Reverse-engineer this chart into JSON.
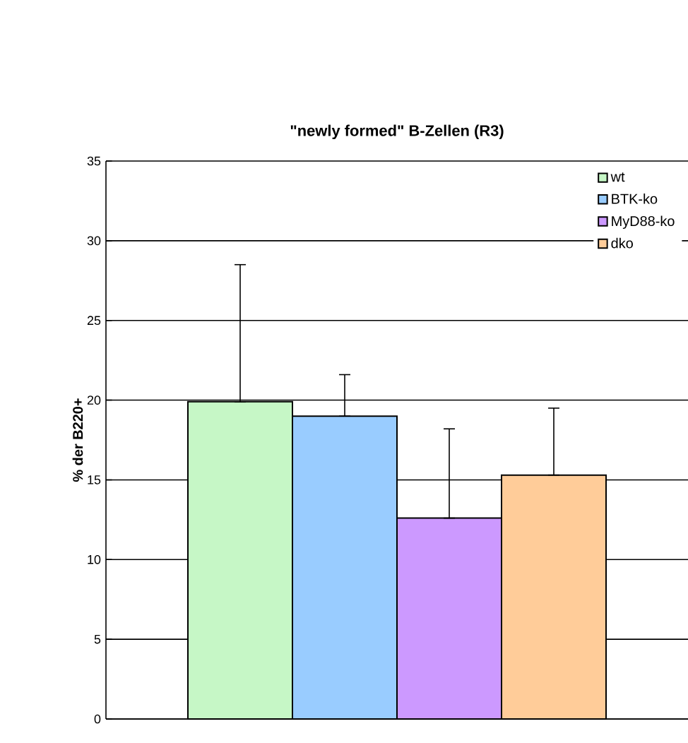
{
  "chart_data": {
    "type": "bar",
    "title": "\"newly formed\" B-Zellen (R3)",
    "ylabel": "% der B220+",
    "categories": [
      null
    ],
    "series": [
      {
        "name": "wt",
        "color": "#c6f7c6",
        "values": [
          19.9
        ],
        "errors": [
          [
            19.9,
            28.5
          ]
        ]
      },
      {
        "name": "BTK-ko",
        "color": "#99ccff",
        "values": [
          19.0
        ],
        "errors": [
          [
            19.0,
            21.6
          ]
        ]
      },
      {
        "name": "MyD88-ko",
        "color": "#cc99ff",
        "values": [
          12.6
        ],
        "errors": [
          [
            12.6,
            18.2
          ]
        ]
      },
      {
        "name": "dko",
        "color": "#ffcc99",
        "values": [
          15.3
        ],
        "errors": [
          [
            15.3,
            19.5
          ]
        ]
      }
    ],
    "ylim": [
      0,
      35
    ],
    "yticks": [
      0,
      5,
      10,
      15,
      20,
      25,
      30,
      35
    ],
    "grid": "y",
    "legend": "top right",
    "tick_labels": "y"
  }
}
